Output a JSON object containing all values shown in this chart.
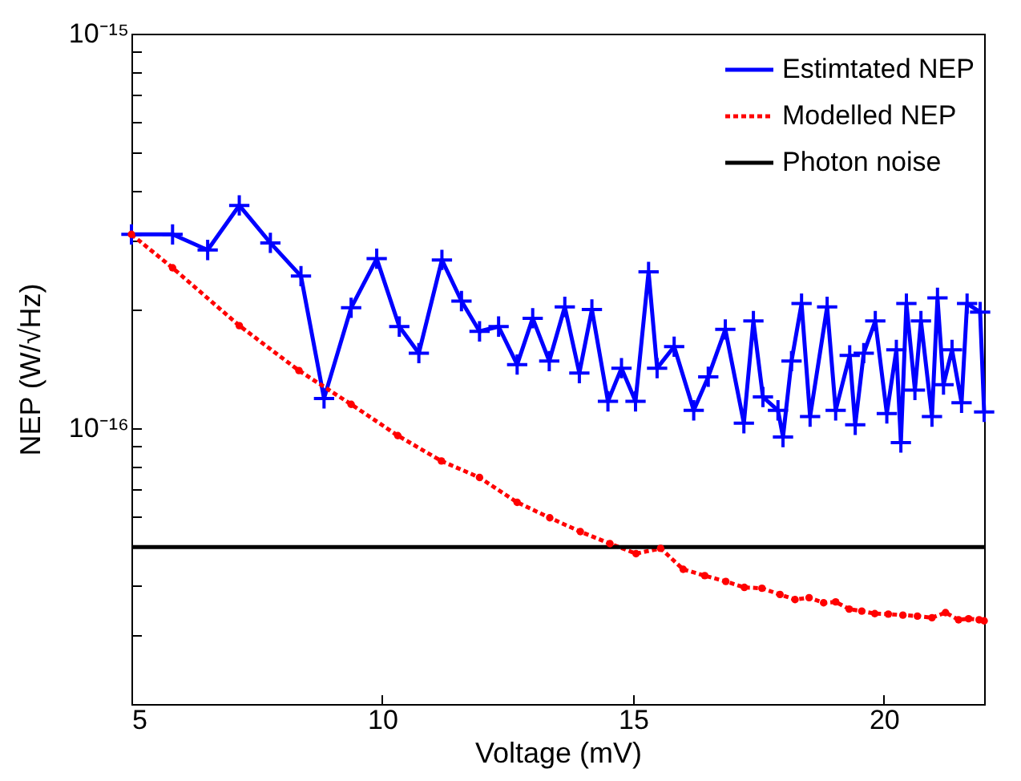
{
  "chart_data": {
    "type": "line",
    "xlabel": "Voltage (mV)",
    "ylabel": "NEP (W/√Hz)",
    "log": "y",
    "xlim": [
      5,
      22
    ],
    "xticks": [
      5,
      10,
      15,
      20
    ],
    "ylim": [
      2e-17,
      1e-15
    ],
    "yticks": [
      {
        "value": 3e-17,
        "label": null
      },
      {
        "value": 4e-17,
        "label": null
      },
      {
        "value": 5e-17,
        "label": null
      },
      {
        "value": 6e-17,
        "label": null
      },
      {
        "value": 7e-17,
        "label": null
      },
      {
        "value": 8e-17,
        "label": null
      },
      {
        "value": 9e-17,
        "label": null
      },
      {
        "value": 1e-16,
        "label": "10⁻¹⁶"
      },
      {
        "value": 2e-16,
        "label": null
      },
      {
        "value": 3e-16,
        "label": null
      },
      {
        "value": 4e-16,
        "label": null
      },
      {
        "value": 5e-16,
        "label": null
      },
      {
        "value": 6e-16,
        "label": null
      },
      {
        "value": 7e-16,
        "label": null
      },
      {
        "value": 8e-16,
        "label": null
      },
      {
        "value": 9e-16,
        "label": null
      },
      {
        "value": 1e-15,
        "label": "10⁻¹⁵"
      }
    ],
    "legend": "top right",
    "series": [
      {
        "name": "Estimtated NEP",
        "color": "#0000ff",
        "marker": "cross",
        "line_style": "solid",
        "x": [
          5,
          5.82,
          6.52,
          7.15,
          7.77,
          8.38,
          8.84,
          9.38,
          9.89,
          10.34,
          10.73,
          11.19,
          11.58,
          11.94,
          12.32,
          12.69,
          13.0,
          13.33,
          13.64,
          13.93,
          14.18,
          14.5,
          14.77,
          15.05,
          15.31,
          15.48,
          15.82,
          16.21,
          16.5,
          16.84,
          17.21,
          17.4,
          17.59,
          17.89,
          17.99,
          18.16,
          18.36,
          18.53,
          18.87,
          19.04,
          19.32,
          19.43,
          19.6,
          19.83,
          20.06,
          20.25,
          20.34,
          20.45,
          20.62,
          20.74,
          20.96,
          21.07,
          21.19,
          21.36,
          21.55,
          21.66,
          21.92,
          22
        ],
        "values": [
          3.1e-16,
          3.1e-16,
          2.83e-16,
          3.67e-16,
          2.95e-16,
          2.43e-16,
          1.19e-16,
          2.02e-16,
          2.69e-16,
          1.81e-16,
          1.55e-16,
          2.67e-16,
          2.1e-16,
          1.76e-16,
          1.81e-16,
          1.45e-16,
          1.9e-16,
          1.48e-16,
          2.03e-16,
          1.38e-16,
          2e-16,
          1.17e-16,
          1.42e-16,
          1.17e-16,
          2.49e-16,
          1.42e-16,
          1.61e-16,
          1.11e-16,
          1.35e-16,
          1.78e-16,
          1.03e-16,
          1.87e-16,
          1.2e-16,
          1.11e-16,
          9.5e-17,
          1.48e-16,
          2.07e-16,
          1.07e-16,
          2.03e-16,
          1.11e-16,
          1.53e-16,
          1.02e-16,
          1.55e-16,
          1.87e-16,
          1.09e-16,
          1.58e-16,
          9.2e-17,
          2.07e-16,
          1.25e-16,
          1.87e-16,
          1.07e-16,
          2.14e-16,
          1.29e-16,
          1.58e-16,
          1.16e-16,
          2.07e-16,
          1.97e-16,
          1.1e-16
        ]
      },
      {
        "name": "Modelled NEP",
        "color": "#ff0000",
        "marker": "circle",
        "line_style": "dotted",
        "x": [
          5,
          5.82,
          7.15,
          8.34,
          9.38,
          10.31,
          11.18,
          11.94,
          12.69,
          13.34,
          13.95,
          14.54,
          15.06,
          15.55,
          16.0,
          16.43,
          16.85,
          17.22,
          17.57,
          17.93,
          18.23,
          18.51,
          18.8,
          19.04,
          19.31,
          19.56,
          19.82,
          20.09,
          20.38,
          20.67,
          20.96,
          21.23,
          21.49,
          21.69,
          21.9,
          22
        ],
        "values": [
          3.1e-16,
          2.55e-16,
          1.82e-16,
          1.4e-16,
          1.15e-16,
          9.58e-17,
          8.26e-17,
          7.5e-17,
          6.49e-17,
          5.93e-17,
          5.47e-17,
          5.1e-17,
          4.81e-17,
          4.96e-17,
          4.39e-17,
          4.23e-17,
          4.09e-17,
          3.95e-17,
          3.93e-17,
          3.79e-17,
          3.68e-17,
          3.72e-17,
          3.61e-17,
          3.63e-17,
          3.48e-17,
          3.44e-17,
          3.39e-17,
          3.38e-17,
          3.36e-17,
          3.34e-17,
          3.31e-17,
          3.41e-17,
          3.27e-17,
          3.29e-17,
          3.27e-17,
          3.25e-17
        ]
      },
      {
        "name": "Photon noise",
        "color": "#000000",
        "marker": "none",
        "line_style": "solid",
        "x": [
          5,
          22
        ],
        "values": [
          5e-17,
          5e-17
        ]
      }
    ]
  }
}
